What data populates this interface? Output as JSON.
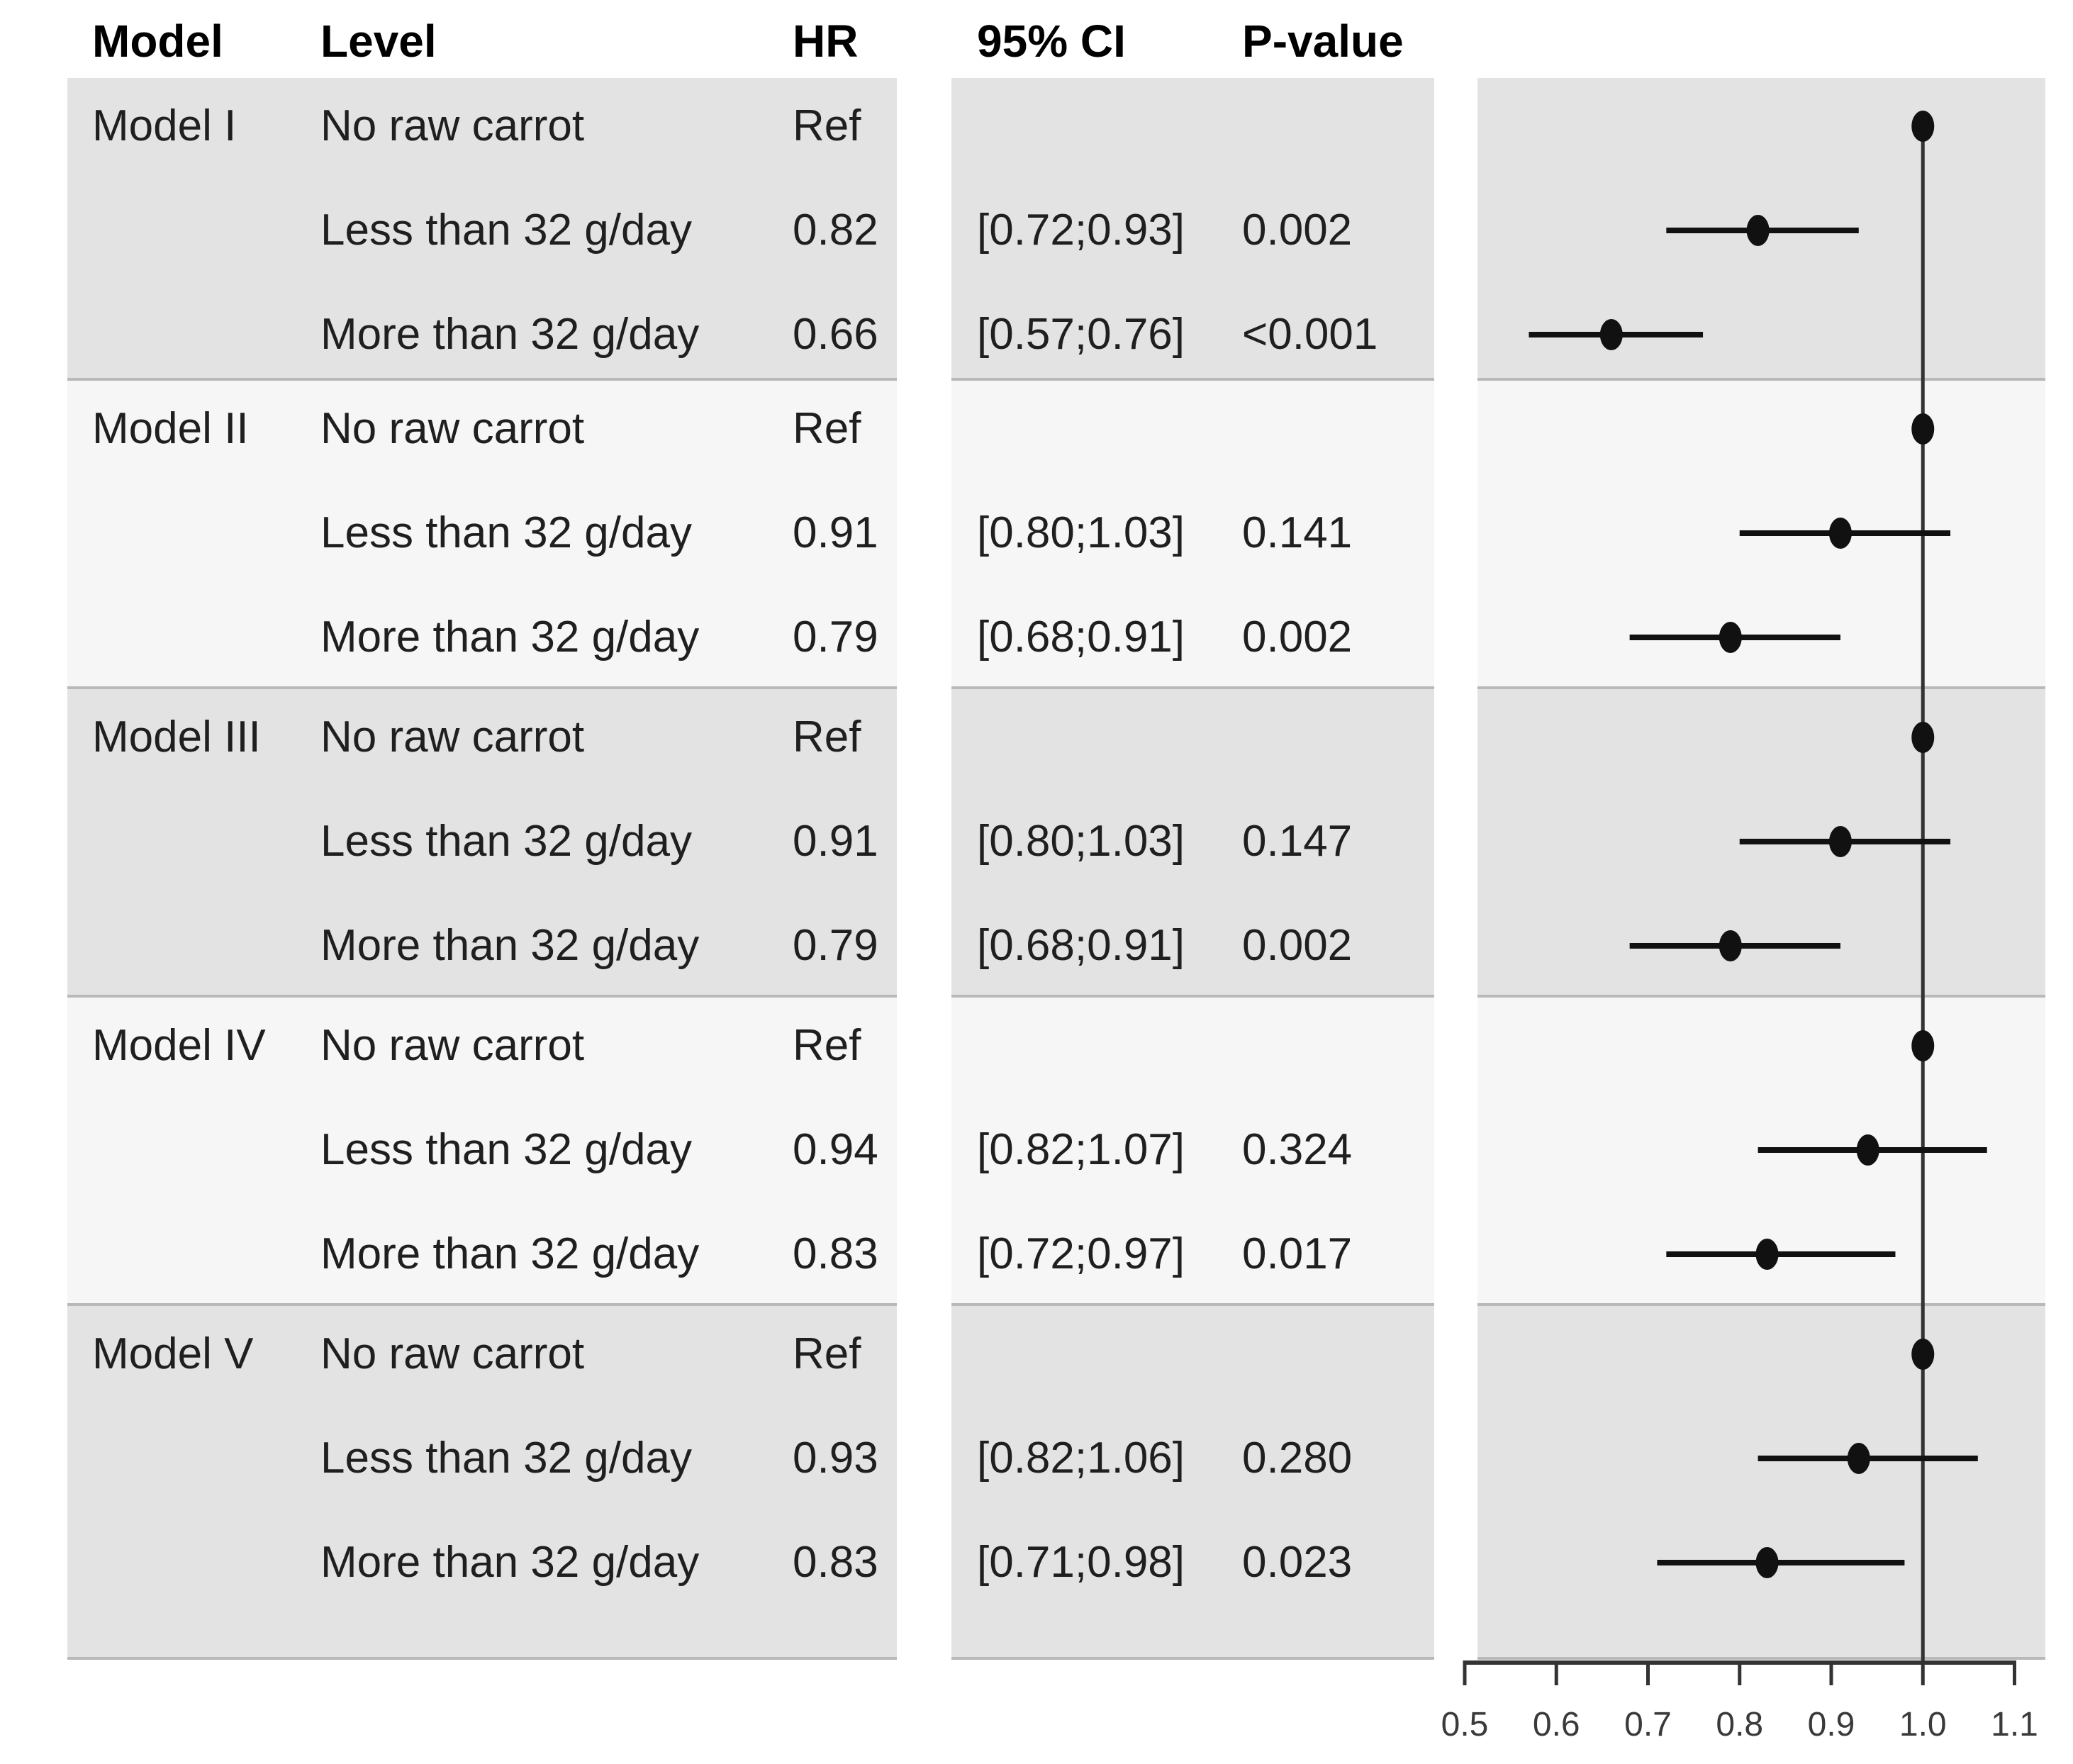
{
  "figure": {
    "header": {
      "model": "Model",
      "level": "Level",
      "hr": "HR",
      "ci": "95% CI",
      "p": "P-value"
    }
  },
  "colors": {
    "band_gray": "#e3e3e3",
    "band_light": "#f6f6f6",
    "band_edge": "#b9b9b9",
    "header_rule": "#a9a9a9",
    "text": "#1f1f1f",
    "plot_ink": "#111111",
    "axis_ink": "#333333",
    "axis_text": "#3a3a3a"
  },
  "chart_data": {
    "type": "forest",
    "x_axis": {
      "min": 0.5,
      "max": 1.1,
      "tick_labels": [
        "0.5",
        "0.6",
        "0.7",
        "0.8",
        "0.9",
        "1.0",
        "1.1"
      ],
      "tick_values": [
        0.5,
        0.6,
        0.7,
        0.8,
        0.9,
        1.0,
        1.1
      ]
    },
    "reference_value": 1.0,
    "groups": [
      {
        "model": "Model I",
        "rows": [
          {
            "level": "No raw carrot",
            "hr_text": "Ref",
            "hr": 1.0,
            "is_ref": true
          },
          {
            "level": "Less than 32 g/day",
            "hr_text": "0.82",
            "hr": 0.82,
            "ci": [
              0.72,
              0.93
            ],
            "ci_text": "[0.72;0.93]",
            "p": "0.002"
          },
          {
            "level": "More than 32 g/day",
            "hr_text": "0.66",
            "hr": 0.66,
            "ci": [
              0.57,
              0.76
            ],
            "ci_text": "[0.57;0.76]",
            "p": "<0.001"
          }
        ]
      },
      {
        "model": "Model II",
        "rows": [
          {
            "level": "No raw carrot",
            "hr_text": "Ref",
            "hr": 1.0,
            "is_ref": true
          },
          {
            "level": "Less than 32 g/day",
            "hr_text": "0.91",
            "hr": 0.91,
            "ci": [
              0.8,
              1.03
            ],
            "ci_text": "[0.80;1.03]",
            "p": "0.141"
          },
          {
            "level": "More than 32 g/day",
            "hr_text": "0.79",
            "hr": 0.79,
            "ci": [
              0.68,
              0.91
            ],
            "ci_text": "[0.68;0.91]",
            "p": "0.002"
          }
        ]
      },
      {
        "model": "Model III",
        "rows": [
          {
            "level": "No raw carrot",
            "hr_text": "Ref",
            "hr": 1.0,
            "is_ref": true
          },
          {
            "level": "Less than 32 g/day",
            "hr_text": "0.91",
            "hr": 0.91,
            "ci": [
              0.8,
              1.03
            ],
            "ci_text": "[0.80;1.03]",
            "p": "0.147"
          },
          {
            "level": "More than 32 g/day",
            "hr_text": "0.79",
            "hr": 0.79,
            "ci": [
              0.68,
              0.91
            ],
            "ci_text": "[0.68;0.91]",
            "p": "0.002"
          }
        ]
      },
      {
        "model": "Model IV",
        "rows": [
          {
            "level": "No raw carrot",
            "hr_text": "Ref",
            "hr": 1.0,
            "is_ref": true
          },
          {
            "level": "Less than 32 g/day",
            "hr_text": "0.94",
            "hr": 0.94,
            "ci": [
              0.82,
              1.07
            ],
            "ci_text": "[0.82;1.07]",
            "p": "0.324"
          },
          {
            "level": "More than 32 g/day",
            "hr_text": "0.83",
            "hr": 0.83,
            "ci": [
              0.72,
              0.97
            ],
            "ci_text": "[0.72;0.97]",
            "p": "0.017"
          }
        ]
      },
      {
        "model": "Model V",
        "rows": [
          {
            "level": "No raw carrot",
            "hr_text": "Ref",
            "hr": 1.0,
            "is_ref": true
          },
          {
            "level": "Less than 32 g/day",
            "hr_text": "0.93",
            "hr": 0.93,
            "ci": [
              0.82,
              1.06
            ],
            "ci_text": "[0.82;1.06]",
            "p": "0.280"
          },
          {
            "level": "More than 32 g/day",
            "hr_text": "0.83",
            "hr": 0.83,
            "ci": [
              0.71,
              0.98
            ],
            "ci_text": "[0.71;0.98]",
            "p": "0.023"
          }
        ]
      }
    ]
  }
}
